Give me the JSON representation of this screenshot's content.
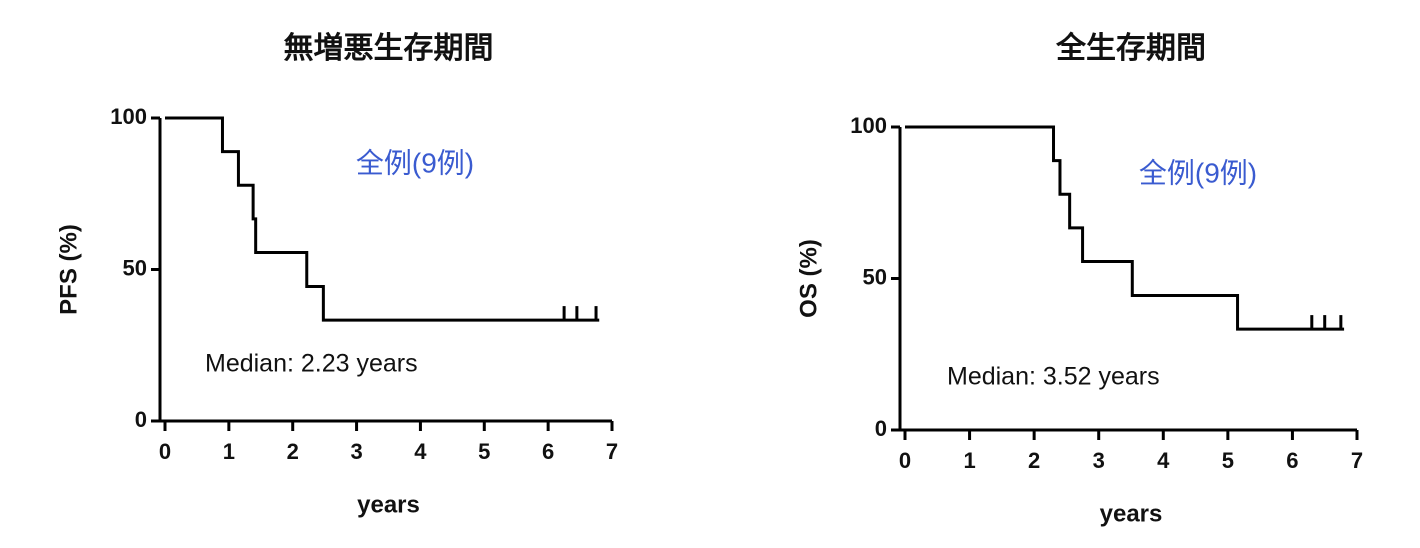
{
  "chart_data": [
    {
      "type": "step",
      "title": "無増悪生存期間",
      "annotation": "全例(9例)",
      "median_label": "Median: 2.23 years",
      "xlabel": "years",
      "ylabel": "PFS (%)",
      "x": [
        0,
        0.9,
        1.15,
        1.38,
        1.42,
        2.22,
        2.48,
        6.8
      ],
      "values": [
        100,
        88.9,
        77.8,
        66.7,
        55.6,
        44.4,
        33.3,
        33.3
      ],
      "censor_x": [
        6.25,
        6.45,
        6.75
      ],
      "censor_values": [
        33.3,
        33.3,
        33.3
      ],
      "color": "#000000",
      "annotation_color": "#3a5bd0",
      "xlim": [
        0,
        7
      ],
      "ylim": [
        0,
        100
      ],
      "xticks": [
        0,
        1,
        2,
        3,
        4,
        5,
        6,
        7
      ],
      "yticks": [
        0,
        50,
        100
      ]
    },
    {
      "type": "step",
      "title": "全生存期間",
      "annotation": "全例(9例)",
      "median_label": "Median: 3.52 years",
      "xlabel": "years",
      "ylabel": "OS (%)",
      "x": [
        0,
        2.3,
        2.4,
        2.55,
        2.75,
        3.52,
        5.15,
        6.8
      ],
      "values": [
        100,
        88.9,
        77.8,
        66.7,
        55.6,
        44.4,
        33.3,
        33.3
      ],
      "censor_x": [
        6.3,
        6.5,
        6.75
      ],
      "censor_values": [
        33.3,
        33.3,
        33.3
      ],
      "color": "#000000",
      "annotation_color": "#3a5bd0",
      "xlim": [
        0,
        7
      ],
      "ylim": [
        0,
        100
      ],
      "xticks": [
        0,
        1,
        2,
        3,
        4,
        5,
        6,
        7
      ],
      "yticks": [
        0,
        50,
        100
      ]
    }
  ]
}
